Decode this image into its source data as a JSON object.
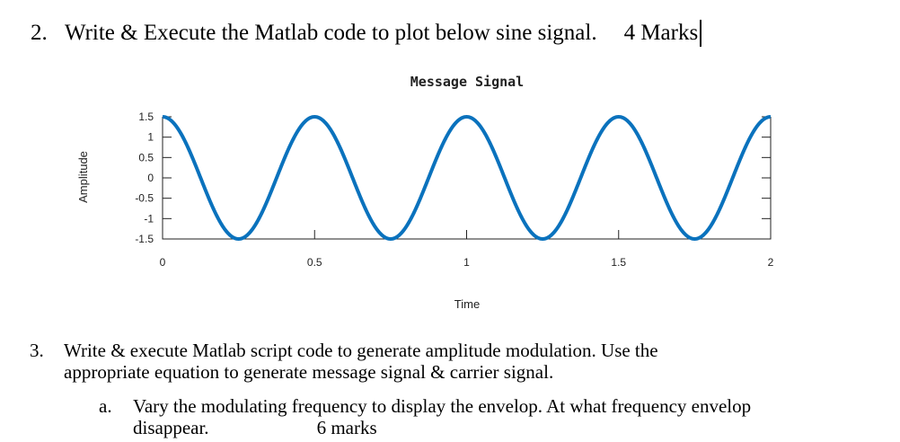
{
  "question2": {
    "number": "2.",
    "text": "Write & Execute the Matlab code to plot below sine signal.",
    "marks": "4 Marks"
  },
  "chart_data": {
    "type": "line",
    "title": "Message Signal",
    "xlabel": "Time",
    "ylabel": "Amplitude",
    "xlim": [
      0,
      2
    ],
    "ylim": [
      -1.5,
      1.5
    ],
    "x_ticks": [
      "0",
      "0.5",
      "1",
      "1.5",
      "2"
    ],
    "y_ticks": [
      "1.5",
      "1",
      "0.5",
      "0",
      "-0.5",
      "-1",
      "-1.5"
    ],
    "series": [
      {
        "function": "y = 1.5*cos(4*pi*t)",
        "amplitude": 1.5,
        "frequency_hz": 2,
        "t_range": [
          0,
          2
        ],
        "color": "#0a72bd"
      }
    ],
    "grid": false
  },
  "question3": {
    "number": "3.",
    "line1": "Write & execute Matlab script code to generate amplitude modulation. Use the",
    "line2": "appropriate equation to generate message signal & carrier signal.",
    "sub_a": {
      "letter": "a.",
      "line1": "Vary the modulating frequency to display the envelop. At what frequency envelop",
      "line2": "disappear.",
      "marks": "6 marks"
    }
  }
}
